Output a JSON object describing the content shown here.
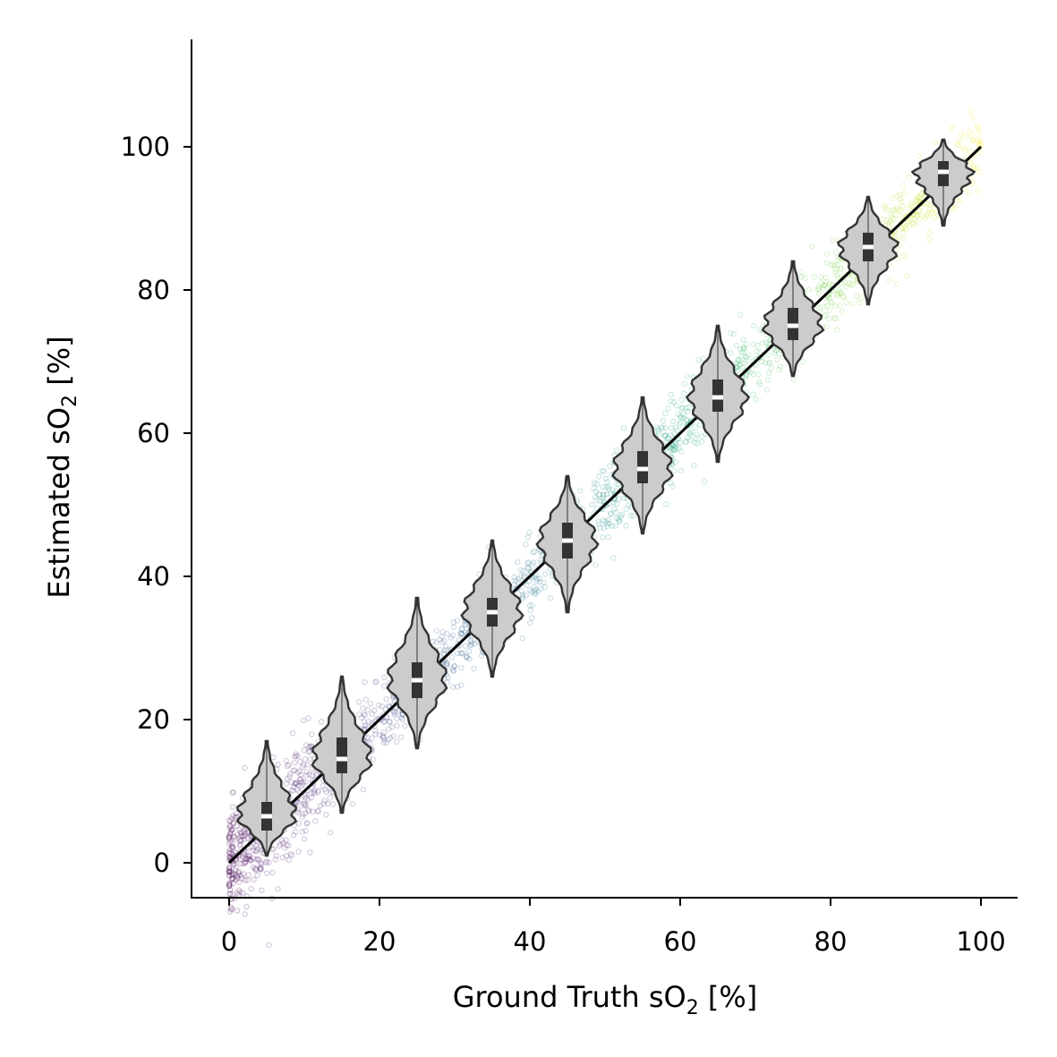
{
  "chart_data": {
    "type": "scatter",
    "title": "",
    "xlabel_main": "Ground Truth sO",
    "xlabel_sub": "2",
    "xlabel_unit": " [%]",
    "ylabel_main": "Estimated sO",
    "ylabel_sub": "2",
    "ylabel_unit": " [%]",
    "xlim": [
      -5,
      105
    ],
    "ylim": [
      -5,
      115
    ],
    "xticks": [
      0,
      20,
      40,
      60,
      80,
      100
    ],
    "yticks": [
      0,
      20,
      40,
      60,
      80,
      100
    ],
    "grid": false,
    "scatter": {
      "colormap": "viridis",
      "color_by": "ground truth sO2",
      "x_range": [
        0,
        100
      ],
      "approx_noise_sd": 2.5
    },
    "identity_line": {
      "from": [
        0,
        0
      ],
      "to": [
        100,
        100
      ],
      "color": "#000000"
    },
    "violins": [
      {
        "x": 5,
        "min": 1,
        "q1": 4.5,
        "median": 6.5,
        "q3": 8.5,
        "max": 17
      },
      {
        "x": 15,
        "min": 7,
        "q1": 12.5,
        "median": 14.5,
        "q3": 17.5,
        "max": 26
      },
      {
        "x": 25,
        "min": 16,
        "q1": 23,
        "median": 25.5,
        "q3": 28,
        "max": 37
      },
      {
        "x": 35,
        "min": 26,
        "q1": 33,
        "median": 35,
        "q3": 37,
        "max": 45
      },
      {
        "x": 45,
        "min": 35,
        "q1": 42.5,
        "median": 45,
        "q3": 47.5,
        "max": 54
      },
      {
        "x": 55,
        "min": 46,
        "q1": 53,
        "median": 55,
        "q3": 57.5,
        "max": 65
      },
      {
        "x": 65,
        "min": 56,
        "q1": 63,
        "median": 65,
        "q3": 67.5,
        "max": 75
      },
      {
        "x": 75,
        "min": 68,
        "q1": 73,
        "median": 75,
        "q3": 77.5,
        "max": 84
      },
      {
        "x": 85,
        "min": 78,
        "q1": 84,
        "median": 86,
        "q3": 88,
        "max": 93
      },
      {
        "x": 95,
        "min": 89,
        "q1": 94.5,
        "median": 96.5,
        "q3": 98,
        "max": 101
      }
    ],
    "violin_fill": "#cccccc",
    "violin_edge": "#333333"
  }
}
